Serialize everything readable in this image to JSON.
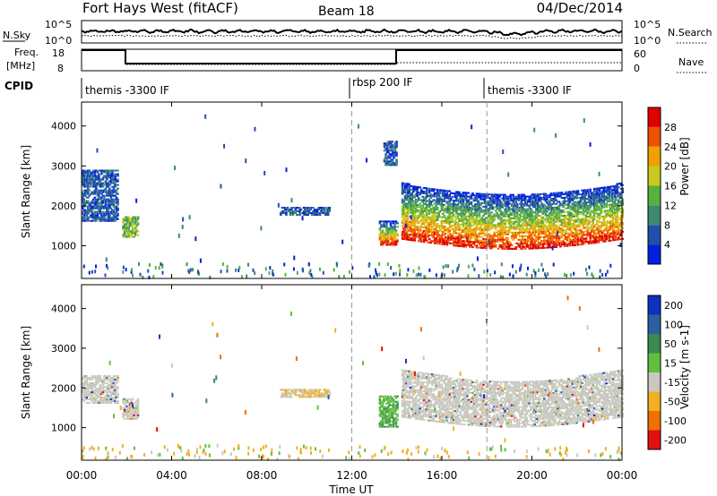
{
  "header": {
    "station": "Fort Hays West (fitACF)",
    "beam": "Beam 18",
    "date": "04/Dec/2014"
  },
  "noise_panel": {
    "left_label": "N.Sky",
    "left_ticks": [
      "10^5",
      "10^0"
    ],
    "right_label": "N.Search",
    "right_ticks": [
      "10^5",
      "10^0"
    ]
  },
  "freq_panel": {
    "left_label_1": "Freq.",
    "left_label_2": "[MHz]",
    "left_ticks": [
      "18",
      "8"
    ],
    "right_label": "Nave",
    "right_ticks": [
      "60",
      "0"
    ]
  },
  "cpid_panel": {
    "label": "CPID",
    "modes": [
      {
        "name": "themis -3300 IF",
        "start_hour": 0
      },
      {
        "name": "rbsp 200 IF",
        "start_hour": 12
      },
      {
        "name": "themis -3300 IF",
        "start_hour": 18
      }
    ]
  },
  "chart_data": [
    {
      "type": "heatmap",
      "title": "",
      "ylabel": "Slant Range [km]",
      "xlabel": "Time UT",
      "xlim_hours": [
        0,
        24
      ],
      "ylim_km": [
        180,
        4600
      ],
      "yticks": [
        1000,
        2000,
        3000,
        4000
      ],
      "xticks": [
        "00:00",
        "04:00",
        "08:00",
        "12:00",
        "16:00",
        "20:00",
        "00:00"
      ],
      "colorbar": {
        "label": "Power [dB]",
        "ticks": [
          "4",
          "8",
          "12",
          "16",
          "20",
          "24",
          "28"
        ],
        "colors": [
          "#0020e0",
          "#2050a8",
          "#3d8a6e",
          "#55b23a",
          "#c8c81e",
          "#f0a000",
          "#f05000",
          "#e00000"
        ]
      },
      "regions": [
        {
          "t0": 0.0,
          "t1": 1.6,
          "r0": 1600,
          "r1": 2900,
          "level": "low"
        },
        {
          "t0": 1.8,
          "t1": 2.5,
          "r0": 1200,
          "r1": 1700,
          "level": "mid"
        },
        {
          "t0": 8.8,
          "t1": 11.0,
          "r0": 1750,
          "r1": 1950,
          "level": "low"
        },
        {
          "t0": 13.2,
          "t1": 14.0,
          "r0": 1000,
          "r1": 1600,
          "level": "high"
        },
        {
          "t0": 13.4,
          "t1": 14.0,
          "r0": 3000,
          "r1": 3600,
          "level": "low"
        },
        {
          "t0": 14.2,
          "t1": 24.0,
          "r0": 900,
          "r1": 2400,
          "level": "high"
        }
      ]
    },
    {
      "type": "heatmap",
      "title": "",
      "ylabel": "Slant Range [km]",
      "xlabel": "Time UT",
      "xlim_hours": [
        0,
        24
      ],
      "ylim_km": [
        180,
        4600
      ],
      "yticks": [
        1000,
        2000,
        3000,
        4000
      ],
      "xticks": [
        "00:00",
        "04:00",
        "08:00",
        "12:00",
        "16:00",
        "20:00",
        "00:00"
      ],
      "colorbar": {
        "label": "Velocity [m s-1]",
        "ticks": [
          "200",
          "100",
          "50",
          "15",
          "-15",
          "-50",
          "-100",
          "-200"
        ],
        "colors": [
          "#1030c0",
          "#2a60a0",
          "#3c8a50",
          "#60c040",
          "#c8c8c0",
          "#f0b020",
          "#f07000",
          "#e01010"
        ]
      },
      "regions": [
        {
          "t0": 0.0,
          "t1": 1.6,
          "r0": 1600,
          "r1": 2300,
          "level": "zero"
        },
        {
          "t0": 1.8,
          "t1": 2.5,
          "r0": 1200,
          "r1": 1700,
          "level": "zero"
        },
        {
          "t0": 8.8,
          "t1": 11.0,
          "r0": 1750,
          "r1": 1950,
          "level": "mixed"
        },
        {
          "t0": 13.2,
          "t1": 14.0,
          "r0": 1000,
          "r1": 1800,
          "level": "positive"
        },
        {
          "t0": 14.2,
          "t1": 24.0,
          "r0": 1000,
          "r1": 2300,
          "level": "zero"
        }
      ]
    }
  ],
  "time_axis": {
    "label": "Time UT",
    "ticks": [
      "00:00",
      "04:00",
      "08:00",
      "12:00",
      "16:00",
      "20:00",
      "00:00"
    ]
  }
}
